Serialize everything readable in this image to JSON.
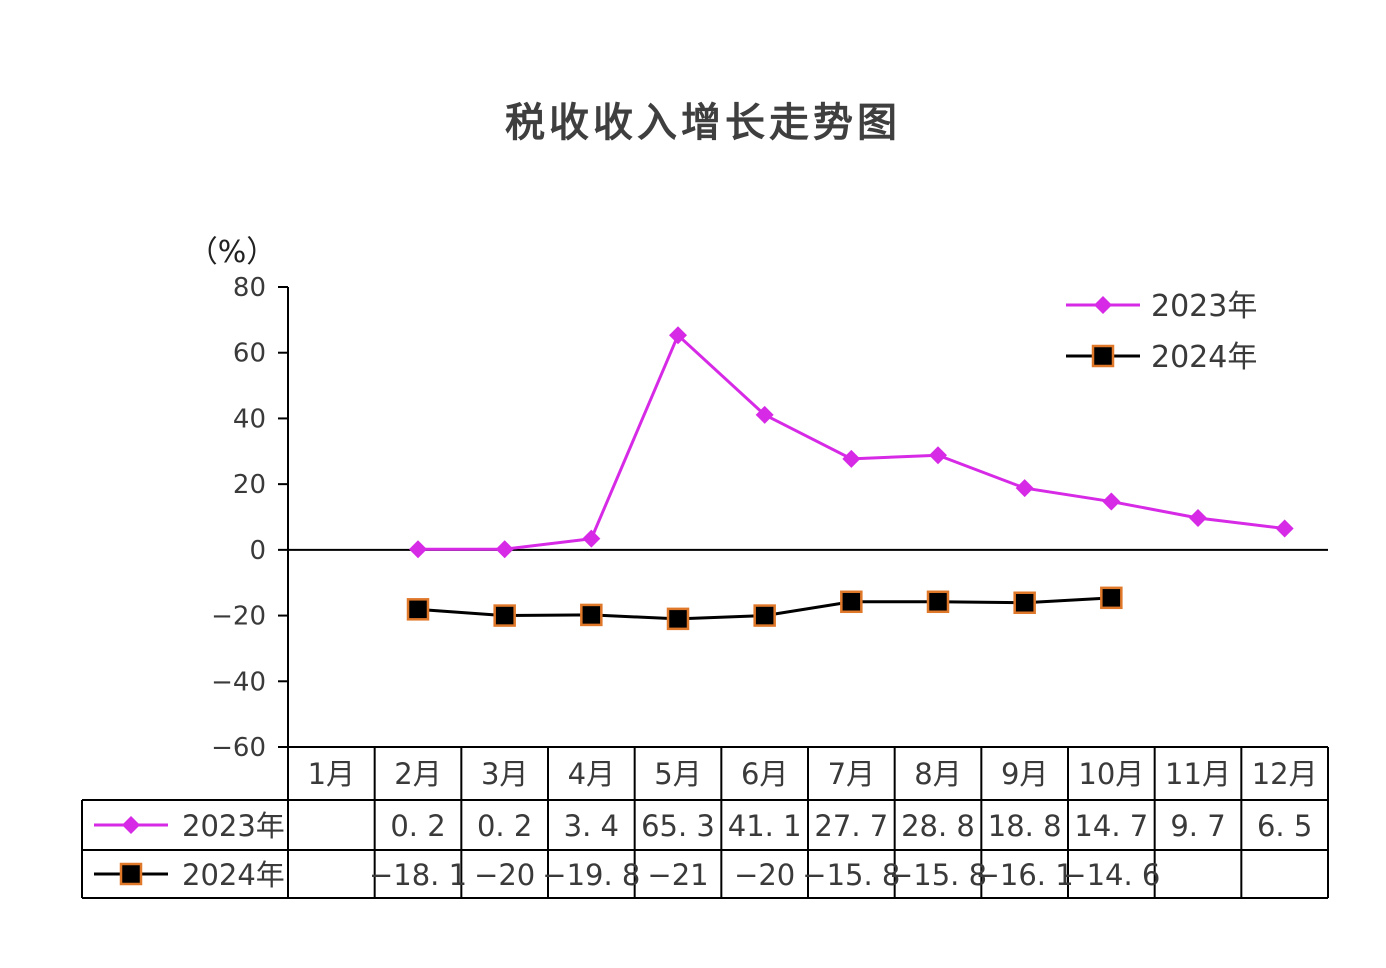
{
  "chart_data": {
    "type": "line",
    "title": "税收收入增长走势图",
    "ylabel": "（%）",
    "ylim": [
      -60,
      80
    ],
    "yticks": [
      "80",
      "60",
      "40",
      "20",
      "0",
      "−20",
      "−40",
      "−60"
    ],
    "categories": [
      "1月",
      "2月",
      "3月",
      "4月",
      "5月",
      "6月",
      "7月",
      "8月",
      "9月",
      "10月",
      "11月",
      "12月"
    ],
    "series": [
      {
        "name": "2023年",
        "color": "#d62ae6",
        "marker": "diamond",
        "values": [
          null,
          0.2,
          0.2,
          3.4,
          65.3,
          41.1,
          27.7,
          28.8,
          18.8,
          14.7,
          9.7,
          6.5
        ],
        "labels": [
          "",
          "0. 2",
          "0. 2",
          "3. 4",
          "65. 3",
          "41. 1",
          "27. 7",
          "28. 8",
          "18. 8",
          "14. 7",
          "9. 7",
          "6. 5"
        ]
      },
      {
        "name": "2024年",
        "color": "#000000",
        "marker_edge": "#e0782a",
        "marker": "square",
        "values": [
          null,
          -18.1,
          -20,
          -19.8,
          -21,
          -20,
          -15.8,
          -15.8,
          -16.1,
          -14.6,
          null,
          null
        ],
        "labels": [
          "",
          "−18. 1",
          "−20",
          "−19. 8",
          "−21",
          "−20",
          "−15. 8",
          "−15. 8",
          "−16. 1",
          "−14. 6",
          "",
          ""
        ]
      }
    ],
    "legend": "top-right",
    "grid": false,
    "data_table": true
  }
}
